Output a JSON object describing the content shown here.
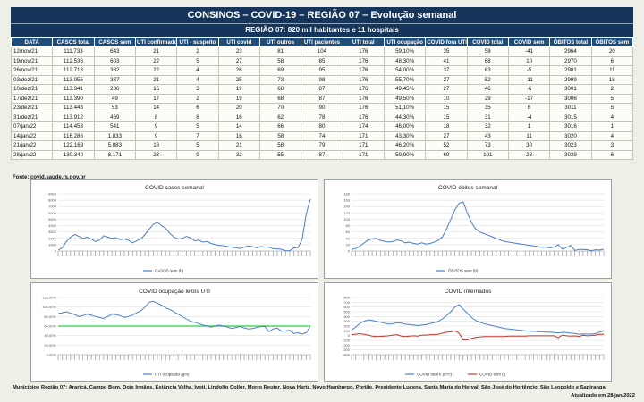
{
  "header": {
    "title": "CONSINOS – COVID-19 – REGIÃO 07 – Evolução semanal",
    "subtitle": "REGIÃO 07: 820 mil habitantes e 11 hospitais"
  },
  "table": {
    "columns": [
      "DATA",
      "CASOS total",
      "CASOS sem",
      "UTI confirmado",
      "UTI - suspeito",
      "UTI covid",
      "UTI outros",
      "UTI pacientes",
      "UTI total",
      "UTI ocupação",
      "COVID fora UTI",
      "COVID total",
      "COVID sem",
      "ÓBITOS total",
      "ÓBITOS sem"
    ],
    "rows": [
      [
        "12/nov/21",
        "111.733",
        "643",
        "21",
        "2",
        "23",
        "81",
        "104",
        "176",
        "59,10%",
        "35",
        "58",
        "-41",
        "2964",
        "20"
      ],
      [
        "19/nov/21",
        "112.536",
        "603",
        "22",
        "5",
        "27",
        "58",
        "85",
        "176",
        "48,30%",
        "41",
        "68",
        "10",
        "2970",
        "6"
      ],
      [
        "26/nov/21",
        "112.718",
        "382",
        "22",
        "4",
        "26",
        "69",
        "95",
        "176",
        "54,00%",
        "37",
        "63",
        "-5",
        "2981",
        "11"
      ],
      [
        "03/dez/21",
        "113.055",
        "337",
        "21",
        "4",
        "25",
        "73",
        "98",
        "176",
        "55,70%",
        "27",
        "52",
        "-11",
        "2999",
        "18"
      ],
      [
        "10/dez/21",
        "113.341",
        "286",
        "16",
        "3",
        "19",
        "68",
        "87",
        "176",
        "49,45%",
        "27",
        "46",
        "-6",
        "3001",
        "2"
      ],
      [
        "17/dez/21",
        "113.390",
        "49",
        "17",
        "2",
        "19",
        "68",
        "87",
        "176",
        "49,50%",
        "10",
        "29",
        "-17",
        "3006",
        "5"
      ],
      [
        "23/dez/21",
        "113.443",
        "53",
        "14",
        "6",
        "20",
        "70",
        "90",
        "176",
        "51,10%",
        "15",
        "35",
        "6",
        "3011",
        "5"
      ],
      [
        "31/dez/21",
        "113.912",
        "469",
        "8",
        "8",
        "16",
        "62",
        "78",
        "176",
        "44,30%",
        "15",
        "31",
        "-4",
        "3015",
        "4"
      ],
      [
        "07/jan/22",
        "114.453",
        "541",
        "9",
        "5",
        "14",
        "66",
        "80",
        "174",
        "46,00%",
        "18",
        "32",
        "1",
        "3016",
        "1"
      ],
      [
        "14/jan/22",
        "116.286",
        "1.833",
        "9",
        "7",
        "16",
        "58",
        "74",
        "171",
        "43,30%",
        "27",
        "43",
        "11",
        "3020",
        "4"
      ],
      [
        "21/jan/22",
        "122.169",
        "5.883",
        "16",
        "5",
        "21",
        "58",
        "79",
        "171",
        "46,20%",
        "52",
        "73",
        "30",
        "3023",
        "3"
      ],
      [
        "28/jan/22",
        "130.340",
        "8.171",
        "23",
        "9",
        "32",
        "55",
        "87",
        "171",
        "59,90%",
        "69",
        "101",
        "28",
        "3029",
        "6"
      ]
    ]
  },
  "source": "Fonte: covid.saude.rs.gov.br",
  "footer": {
    "municipios": "Municípios Região 07: Araricá, Campo Bom, Dois Irmãos, Estância Velha, Ivoti, Lindolfo Collor, Morro Reuter, Nova Hartz, Novo Hamburgo, Portão, Presidente Lucena, Santa Maria do Herval,  São José do Hortêncio, São Leopoldo e Sapiranga",
    "updated": "Atualizado em 28/jan/2022"
  },
  "chart_data": [
    {
      "type": "line",
      "title": "COVID casos semanal",
      "ylim": [
        0,
        9000
      ],
      "yticks": [
        "0",
        "1000",
        "2000",
        "3000",
        "4000",
        "5000",
        "6000",
        "7000",
        "8000",
        "9000"
      ],
      "series": [
        {
          "name": "CASOS sem (b)",
          "color": "#4a7fc9",
          "values": [
            150,
            500,
            1500,
            2200,
            2600,
            2300,
            2000,
            2200,
            1900,
            1500,
            1700,
            2400,
            2200,
            2000,
            2100,
            1800,
            1900,
            1700,
            1300,
            1600,
            1900,
            2600,
            3400,
            4200,
            4500,
            4000,
            3600,
            2800,
            2200,
            1900,
            2000,
            2300,
            2100,
            1600,
            1700,
            1400,
            1500,
            1200,
            1000,
            900,
            800,
            700,
            600,
            500,
            400,
            600,
            800,
            700,
            500,
            700,
            643,
            603,
            382,
            337,
            286,
            49,
            53,
            469,
            541,
            1833,
            5883,
            8171
          ]
        }
      ],
      "grid": true,
      "legend": "bottom"
    },
    {
      "type": "line",
      "title": "COVID óbitos semanal",
      "ylim": [
        0,
        180
      ],
      "yticks": [
        "0",
        "20",
        "40",
        "60",
        "80",
        "100",
        "120",
        "140",
        "160",
        "180"
      ],
      "series": [
        {
          "name": "ÓBITOS sem (b)",
          "color": "#4a7fc9",
          "values": [
            5,
            8,
            15,
            25,
            35,
            38,
            40,
            33,
            30,
            28,
            30,
            35,
            32,
            26,
            28,
            24,
            22,
            26,
            22,
            24,
            28,
            34,
            45,
            70,
            100,
            130,
            150,
            155,
            120,
            90,
            70,
            60,
            55,
            50,
            45,
            40,
            35,
            30,
            28,
            26,
            24,
            22,
            20,
            18,
            16,
            14,
            12,
            12,
            10,
            12,
            20,
            6,
            11,
            18,
            2,
            5,
            5,
            4,
            1,
            4,
            3,
            6
          ]
        }
      ],
      "grid": true,
      "legend": "bottom"
    },
    {
      "type": "line",
      "title": "COVID ocupação leitos UTI",
      "ylim": [
        0,
        120
      ],
      "yticks": [
        "0,00%",
        "20,00%",
        "40,00%",
        "60,00%",
        "80,00%",
        "100,00%",
        "120,00%"
      ],
      "reference_line": 60,
      "reference_color": "#4cd964",
      "series": [
        {
          "name": "UTI ocupação (g/h)",
          "color": "#4a7fc9",
          "values": [
            86,
            88,
            90,
            87,
            84,
            80,
            82,
            85,
            83,
            80,
            78,
            76,
            80,
            85,
            84,
            82,
            78,
            80,
            83,
            88,
            92,
            100,
            110,
            112,
            108,
            104,
            98,
            95,
            90,
            85,
            80,
            75,
            70,
            68,
            65,
            62,
            60,
            58,
            60,
            62,
            60,
            58,
            55,
            57,
            59,
            56,
            54,
            55,
            57,
            59,
            59.1,
            48.3,
            54,
            55.7,
            49.45,
            49.5,
            51.1,
            44.3,
            46,
            43.3,
            46.2,
            59.9
          ]
        }
      ],
      "grid": true,
      "legend": "bottom"
    },
    {
      "type": "line",
      "title": "COVID internados",
      "ylim": [
        -400,
        800
      ],
      "yticks": [
        "-400",
        "-300",
        "-200",
        "-100",
        "0",
        "100",
        "200",
        "300",
        "400",
        "500",
        "600",
        "700",
        "800"
      ],
      "series": [
        {
          "name": "COVID total k (e+c)",
          "color": "#4a7fc9",
          "values": [
            120,
            180,
            250,
            300,
            330,
            320,
            300,
            280,
            260,
            240,
            250,
            270,
            260,
            240,
            230,
            220,
            210,
            220,
            230,
            250,
            270,
            300,
            350,
            420,
            500,
            600,
            650,
            560,
            470,
            380,
            320,
            280,
            250,
            230,
            210,
            190,
            170,
            150,
            140,
            130,
            120,
            110,
            100,
            95,
            90,
            85,
            80,
            75,
            70,
            65,
            58,
            68,
            63,
            52,
            46,
            29,
            35,
            31,
            32,
            43,
            73,
            101
          ]
        },
        {
          "name": "COVID sem (l)",
          "color": "#c0392b",
          "values": [
            20,
            30,
            40,
            25,
            10,
            -10,
            -20,
            -15,
            -10,
            -5,
            10,
            20,
            -10,
            -20,
            -10,
            -5,
            -10,
            10,
            10,
            20,
            20,
            30,
            50,
            70,
            80,
            100,
            50,
            -90,
            -90,
            -60,
            -40,
            -30,
            -20,
            -20,
            -20,
            -20,
            -20,
            -20,
            -10,
            -10,
            -10,
            -10,
            -10,
            -5,
            -5,
            -5,
            -5,
            -5,
            -5,
            -5,
            -41,
            10,
            -5,
            -11,
            -6,
            -17,
            6,
            -4,
            1,
            11,
            30,
            28
          ]
        }
      ],
      "grid": true,
      "legend": "bottom"
    }
  ]
}
